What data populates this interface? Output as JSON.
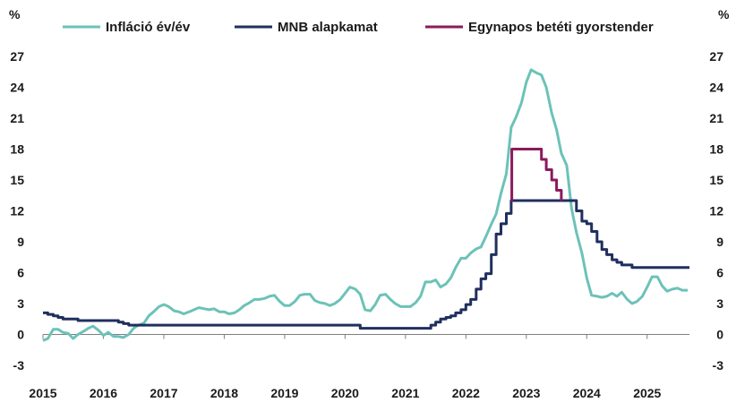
{
  "chart_data": {
    "type": "line",
    "title": "",
    "xlabel": "",
    "ylabel": "%",
    "ylabel_right": "%",
    "ylim": [
      -3,
      27
    ],
    "yticks": [
      -3,
      0,
      3,
      6,
      9,
      12,
      15,
      18,
      21,
      24,
      27
    ],
    "xlim": [
      2015.0,
      2025.7
    ],
    "xticks": [
      2015,
      2016,
      2017,
      2018,
      2019,
      2020,
      2021,
      2022,
      2023,
      2024,
      2025
    ],
    "grid": false,
    "legend_position": "top",
    "series": [
      {
        "name": "Infláció év/év",
        "color": "#6cc2b8",
        "style": "line",
        "points": [
          [
            2015.0,
            -0.6
          ],
          [
            2015.08,
            -0.4
          ],
          [
            2015.17,
            0.5
          ],
          [
            2015.25,
            0.5
          ],
          [
            2015.33,
            0.2
          ],
          [
            2015.42,
            0.1
          ],
          [
            2015.5,
            -0.4
          ],
          [
            2015.58,
            0.0
          ],
          [
            2015.67,
            0.3
          ],
          [
            2015.75,
            0.6
          ],
          [
            2015.83,
            0.8
          ],
          [
            2015.92,
            0.4
          ],
          [
            2016.0,
            -0.1
          ],
          [
            2016.08,
            0.2
          ],
          [
            2016.17,
            -0.2
          ],
          [
            2016.25,
            -0.2
          ],
          [
            2016.33,
            -0.3
          ],
          [
            2016.42,
            0.0
          ],
          [
            2016.5,
            0.6
          ],
          [
            2016.58,
            0.9
          ],
          [
            2016.67,
            1.1
          ],
          [
            2016.75,
            1.8
          ],
          [
            2016.83,
            2.2
          ],
          [
            2016.92,
            2.7
          ],
          [
            2017.0,
            2.9
          ],
          [
            2017.08,
            2.7
          ],
          [
            2017.17,
            2.3
          ],
          [
            2017.25,
            2.2
          ],
          [
            2017.33,
            2.0
          ],
          [
            2017.42,
            2.2
          ],
          [
            2017.5,
            2.4
          ],
          [
            2017.58,
            2.6
          ],
          [
            2017.67,
            2.5
          ],
          [
            2017.75,
            2.4
          ],
          [
            2017.83,
            2.5
          ],
          [
            2017.92,
            2.2
          ],
          [
            2018.0,
            2.2
          ],
          [
            2018.08,
            2.0
          ],
          [
            2018.17,
            2.1
          ],
          [
            2018.25,
            2.4
          ],
          [
            2018.33,
            2.8
          ],
          [
            2018.42,
            3.1
          ],
          [
            2018.5,
            3.4
          ],
          [
            2018.58,
            3.4
          ],
          [
            2018.67,
            3.5
          ],
          [
            2018.75,
            3.7
          ],
          [
            2018.83,
            3.8
          ],
          [
            2018.92,
            3.2
          ],
          [
            2019.0,
            2.8
          ],
          [
            2019.08,
            2.8
          ],
          [
            2019.17,
            3.2
          ],
          [
            2019.25,
            3.8
          ],
          [
            2019.33,
            3.9
          ],
          [
            2019.42,
            3.9
          ],
          [
            2019.5,
            3.3
          ],
          [
            2019.58,
            3.1
          ],
          [
            2019.67,
            3.0
          ],
          [
            2019.75,
            2.8
          ],
          [
            2019.83,
            3.0
          ],
          [
            2019.92,
            3.4
          ],
          [
            2020.0,
            4.0
          ],
          [
            2020.08,
            4.6
          ],
          [
            2020.17,
            4.4
          ],
          [
            2020.25,
            3.9
          ],
          [
            2020.33,
            2.4
          ],
          [
            2020.42,
            2.3
          ],
          [
            2020.5,
            2.9
          ],
          [
            2020.58,
            3.8
          ],
          [
            2020.67,
            3.9
          ],
          [
            2020.75,
            3.4
          ],
          [
            2020.83,
            3.0
          ],
          [
            2020.92,
            2.7
          ],
          [
            2021.0,
            2.7
          ],
          [
            2021.08,
            2.7
          ],
          [
            2021.17,
            3.1
          ],
          [
            2021.25,
            3.7
          ],
          [
            2021.33,
            5.1
          ],
          [
            2021.42,
            5.1
          ],
          [
            2021.5,
            5.3
          ],
          [
            2021.58,
            4.6
          ],
          [
            2021.67,
            4.9
          ],
          [
            2021.75,
            5.5
          ],
          [
            2021.83,
            6.5
          ],
          [
            2021.92,
            7.4
          ],
          [
            2022.0,
            7.4
          ],
          [
            2022.08,
            7.9
          ],
          [
            2022.17,
            8.3
          ],
          [
            2022.25,
            8.5
          ],
          [
            2022.33,
            9.5
          ],
          [
            2022.42,
            10.7
          ],
          [
            2022.5,
            11.7
          ],
          [
            2022.58,
            13.7
          ],
          [
            2022.67,
            15.6
          ],
          [
            2022.75,
            20.1
          ],
          [
            2022.83,
            21.1
          ],
          [
            2022.92,
            22.5
          ],
          [
            2023.0,
            24.5
          ],
          [
            2023.08,
            25.7
          ],
          [
            2023.17,
            25.4
          ],
          [
            2023.25,
            25.2
          ],
          [
            2023.33,
            24.0
          ],
          [
            2023.42,
            21.5
          ],
          [
            2023.5,
            19.9
          ],
          [
            2023.58,
            17.6
          ],
          [
            2023.67,
            16.4
          ],
          [
            2023.75,
            12.2
          ],
          [
            2023.83,
            9.9
          ],
          [
            2023.92,
            7.9
          ],
          [
            2024.0,
            5.5
          ],
          [
            2024.08,
            3.8
          ],
          [
            2024.17,
            3.7
          ],
          [
            2024.25,
            3.6
          ],
          [
            2024.33,
            3.7
          ],
          [
            2024.42,
            4.0
          ],
          [
            2024.5,
            3.7
          ],
          [
            2024.58,
            4.1
          ],
          [
            2024.67,
            3.4
          ],
          [
            2024.75,
            3.0
          ],
          [
            2024.83,
            3.2
          ],
          [
            2024.92,
            3.7
          ],
          [
            2025.0,
            4.6
          ],
          [
            2025.08,
            5.6
          ],
          [
            2025.17,
            5.6
          ],
          [
            2025.25,
            4.7
          ],
          [
            2025.33,
            4.2
          ],
          [
            2025.42,
            4.4
          ],
          [
            2025.5,
            4.5
          ],
          [
            2025.58,
            4.3
          ],
          [
            2025.67,
            4.3
          ]
        ]
      },
      {
        "name": "MNB alapkamat",
        "color": "#1f2f5e",
        "style": "step",
        "points": [
          [
            2015.0,
            2.1
          ],
          [
            2015.08,
            1.95
          ],
          [
            2015.17,
            1.8
          ],
          [
            2015.25,
            1.65
          ],
          [
            2015.33,
            1.5
          ],
          [
            2015.58,
            1.35
          ],
          [
            2016.25,
            1.2
          ],
          [
            2016.33,
            1.05
          ],
          [
            2016.42,
            0.9
          ],
          [
            2020.17,
            0.9
          ],
          [
            2020.25,
            0.6
          ],
          [
            2021.33,
            0.6
          ],
          [
            2021.42,
            0.9
          ],
          [
            2021.5,
            1.2
          ],
          [
            2021.58,
            1.5
          ],
          [
            2021.67,
            1.65
          ],
          [
            2021.75,
            1.8
          ],
          [
            2021.83,
            2.1
          ],
          [
            2021.92,
            2.4
          ],
          [
            2022.0,
            2.9
          ],
          [
            2022.08,
            3.4
          ],
          [
            2022.17,
            4.4
          ],
          [
            2022.25,
            5.4
          ],
          [
            2022.33,
            5.9
          ],
          [
            2022.42,
            7.75
          ],
          [
            2022.5,
            9.75
          ],
          [
            2022.58,
            10.75
          ],
          [
            2022.67,
            11.75
          ],
          [
            2022.75,
            13.0
          ],
          [
            2023.75,
            13.0
          ],
          [
            2023.83,
            12.0
          ],
          [
            2023.92,
            11.0
          ],
          [
            2024.0,
            10.75
          ],
          [
            2024.08,
            10.0
          ],
          [
            2024.17,
            9.0
          ],
          [
            2024.25,
            8.25
          ],
          [
            2024.33,
            7.75
          ],
          [
            2024.42,
            7.25
          ],
          [
            2024.5,
            7.0
          ],
          [
            2024.58,
            6.75
          ],
          [
            2024.75,
            6.5
          ],
          [
            2025.67,
            6.5
          ]
        ]
      },
      {
        "name": "Egynapos betéti gyorstender",
        "color": "#8b1a5e",
        "style": "step",
        "points": [
          [
            2022.75,
            13.0
          ],
          [
            2022.76,
            18.0
          ],
          [
            2023.17,
            18.0
          ],
          [
            2023.25,
            17.0
          ],
          [
            2023.33,
            16.0
          ],
          [
            2023.42,
            15.0
          ],
          [
            2023.5,
            14.0
          ],
          [
            2023.58,
            13.0
          ]
        ]
      }
    ]
  }
}
